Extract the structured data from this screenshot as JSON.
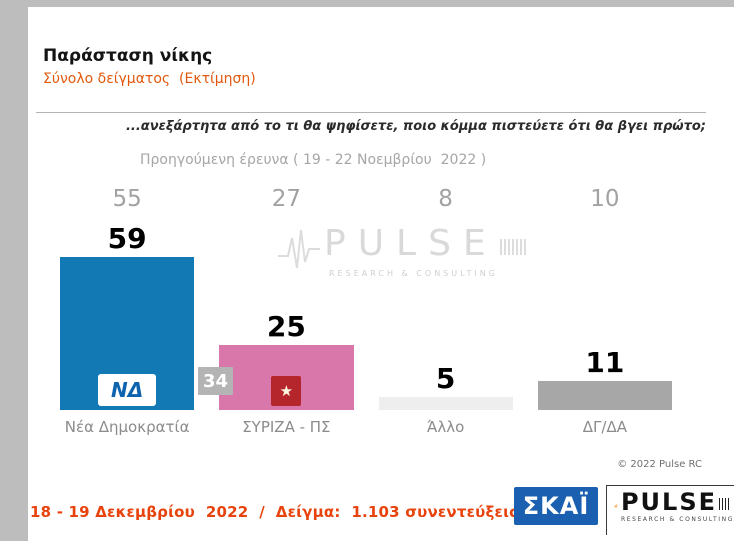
{
  "header": {
    "title": "Παράσταση νίκης",
    "subtitle": "Σύνολο δείγματος  (Εκτίμηση)"
  },
  "question": "...ανεξάρτητα από το τι θα ψηφίσετε, ποιο κόμμα πιστεύετε ότι θα βγει πρώτο;",
  "previous_survey_label": "Προηγούμενη έρευνα ( 19 - 22 Νοεμβρίου  2022 )",
  "chart_data": {
    "type": "bar",
    "title": "Παράσταση νίκης — Σύνολο δείγματος (Εκτίμηση)",
    "categories": [
      "Νέα Δημοκρατία",
      "ΣΥΡΙΖΑ - ΠΣ",
      "Άλλο",
      "ΔΓ/ΔΑ"
    ],
    "series": [
      {
        "name": "Εκτίμηση",
        "values": [
          59,
          25,
          5,
          11
        ]
      },
      {
        "name": "Προηγούμενη έρευνα ( 19 - 22 Νοεμβρίου 2022 )",
        "values": [
          55,
          27,
          8,
          10
        ]
      }
    ],
    "lead_gap_label": "34",
    "bar_colors": [
      "#1279b5",
      "#d977ab",
      "#eeeeee",
      "#a7a7a7"
    ],
    "ylim": [
      0,
      65
    ],
    "grid": false,
    "legend_position": "none"
  },
  "watermark": {
    "brand": "PULSE",
    "tagline": "RESEARCH & CONSULTING"
  },
  "copyright": "© 2022 Pulse RC",
  "footer": {
    "survey_info": "18 - 19 Δεκεμβρίου  2022  /  Δείγμα:  1.103 συνεντεύξεις"
  },
  "logos": {
    "skai": "ΣΚΑΪ",
    "pulse": "PULSE",
    "pulse_tagline": "RESEARCH & CONSULTING",
    "nd": "ΝΔ",
    "syriza_star": "★"
  }
}
